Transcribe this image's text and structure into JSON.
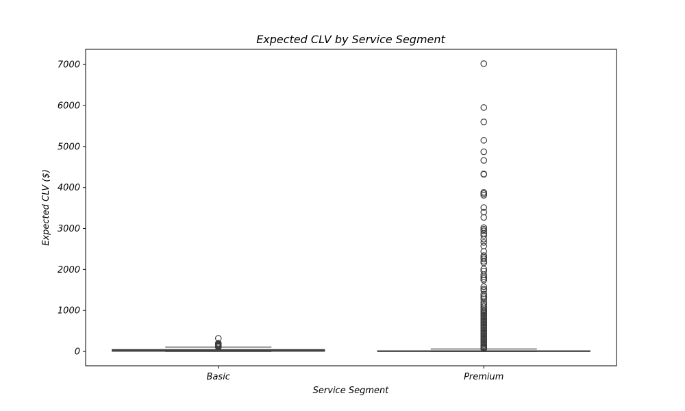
{
  "chart_data": {
    "type": "box",
    "title": "Expected CLV by Service Segment",
    "xlabel": "Service Segment",
    "ylabel": "Expected CLV ($)",
    "ylim": [
      -350,
      7370
    ],
    "yticks": [
      0,
      1000,
      2000,
      3000,
      4000,
      5000,
      6000,
      7000
    ],
    "categories": [
      "Basic",
      "Premium"
    ],
    "grid": false,
    "colors": {
      "box_fill": "#4c72b0",
      "line": "#3d3d3d",
      "frame": "#000000"
    },
    "boxes": [
      {
        "category": "Basic",
        "q1": 5,
        "median": 20,
        "q3": 45,
        "whisker_low": 0,
        "whisker_high": 105,
        "outliers": [
          320,
          200,
          180,
          170,
          160,
          150,
          140,
          130,
          120,
          115,
          110
        ]
      },
      {
        "category": "Premium",
        "q1": 0,
        "median": 5,
        "q3": 15,
        "whisker_low": 0,
        "whisker_high": 60,
        "outliers": [
          7020,
          5950,
          5600,
          5150,
          4870,
          4660,
          4330,
          4320,
          3880,
          3850,
          3810,
          3510,
          3400,
          3270,
          3020,
          2980,
          2940,
          2880,
          2830,
          2740,
          2660,
          2570,
          2440,
          2340,
          2300,
          2260,
          2200,
          2160,
          2010,
          1960,
          1870,
          1820,
          1780,
          1740,
          1580,
          1520,
          1490,
          1400,
          1350,
          1310,
          1270,
          1200,
          1150,
          1100,
          1060,
          1020,
          990,
          960,
          930,
          900,
          870,
          840,
          810,
          780,
          750,
          720,
          690,
          660,
          630,
          600,
          570,
          540,
          510,
          480,
          450,
          420,
          390,
          360,
          330,
          300,
          270,
          240,
          210,
          180,
          150,
          120,
          100,
          85,
          75,
          65
        ]
      }
    ]
  }
}
